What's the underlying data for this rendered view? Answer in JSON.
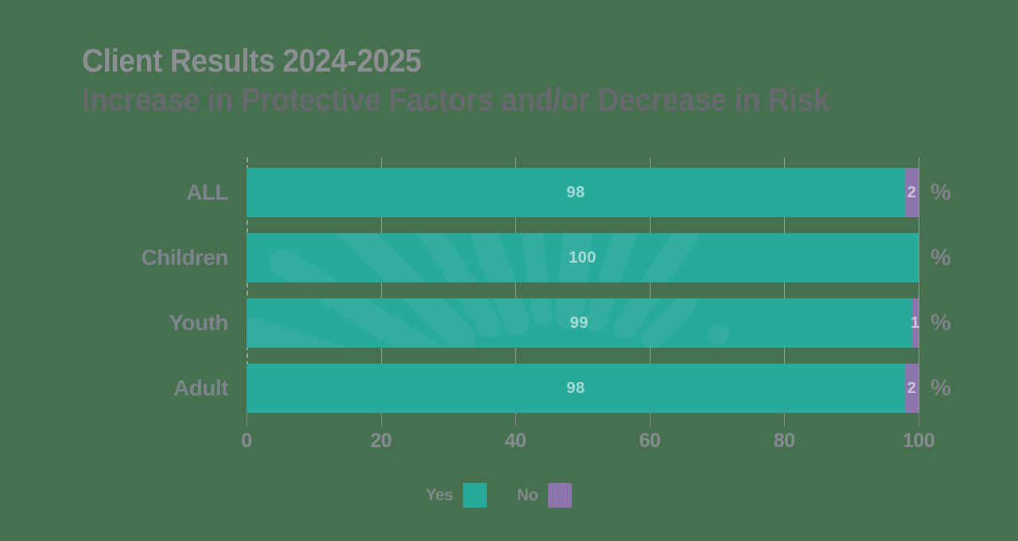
{
  "title": {
    "line1": "Client Results 2024-2025",
    "line2": "Increase in Protective Factors and/or Decrease in Risk"
  },
  "chart_data": {
    "type": "bar",
    "orientation": "horizontal",
    "stacked": true,
    "title": "Client Results 2024-2025",
    "subtitle": "Increase in Protective Factors and/or Decrease in Risk",
    "categories": [
      "ALL",
      "Children",
      "Youth",
      "Adult"
    ],
    "series": [
      {
        "name": "Yes",
        "color": "#27A99B",
        "values": [
          98,
          100,
          99,
          98
        ]
      },
      {
        "name": "No",
        "color": "#8E74AD",
        "values": [
          2,
          0,
          1,
          2
        ]
      }
    ],
    "unit": "%",
    "x_ticks": [
      0,
      20,
      40,
      60,
      80,
      100
    ],
    "xlim": [
      0,
      100
    ],
    "grid": true,
    "legend_position": "bottom"
  },
  "colors": {
    "background": "#47704E",
    "yes": "#27A99B",
    "no": "#8E74AD",
    "title_line1": "#8C9094",
    "title_line2": "#66696D",
    "axis_text": "#868C91",
    "category_text": "#7C858C",
    "percent_text": "#7D8388",
    "bar_value_text": "rgba(255,255,255,0.58)"
  }
}
